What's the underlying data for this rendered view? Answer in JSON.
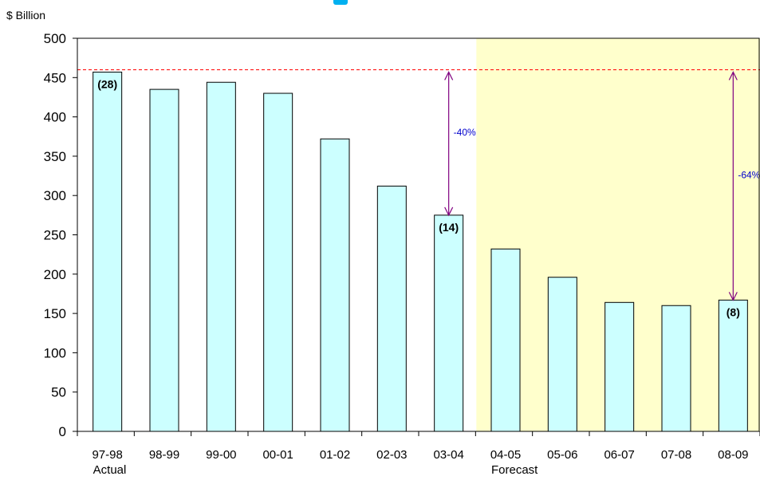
{
  "chart_data": {
    "type": "bar",
    "ylabel": "$ Billion",
    "ylim": [
      0,
      500
    ],
    "yticks": [
      0,
      50,
      100,
      150,
      200,
      250,
      300,
      350,
      400,
      450,
      500
    ],
    "categories": [
      "97-98",
      "98-99",
      "99-00",
      "00-01",
      "01-02",
      "02-03",
      "03-04",
      "04-05",
      "05-06",
      "06-07",
      "07-08",
      "08-09"
    ],
    "values": [
      457,
      435,
      444,
      430,
      372,
      312,
      275,
      232,
      196,
      164,
      160,
      167
    ],
    "category_sublabels": {
      "0": "Actual",
      "7": "Forecast"
    },
    "bar_labels": {
      "0": "(28)",
      "6": "(14)",
      "11": "(8)"
    },
    "forecast_start_index": 7,
    "reference_value": 460,
    "arrows": [
      {
        "category_index": 6,
        "from": 457,
        "to": 275,
        "label": "-40%"
      },
      {
        "category_index": 11,
        "from": 457,
        "to": 167,
        "label": "-64%"
      }
    ],
    "colors": {
      "bar_fill": "#ccffff",
      "bar_stroke": "#000000",
      "forecast_bg": "#ffffcc",
      "reference_line": "#ff0000",
      "arrow": "#800080",
      "arrow_label": "#0000cc"
    },
    "grid": false
  }
}
